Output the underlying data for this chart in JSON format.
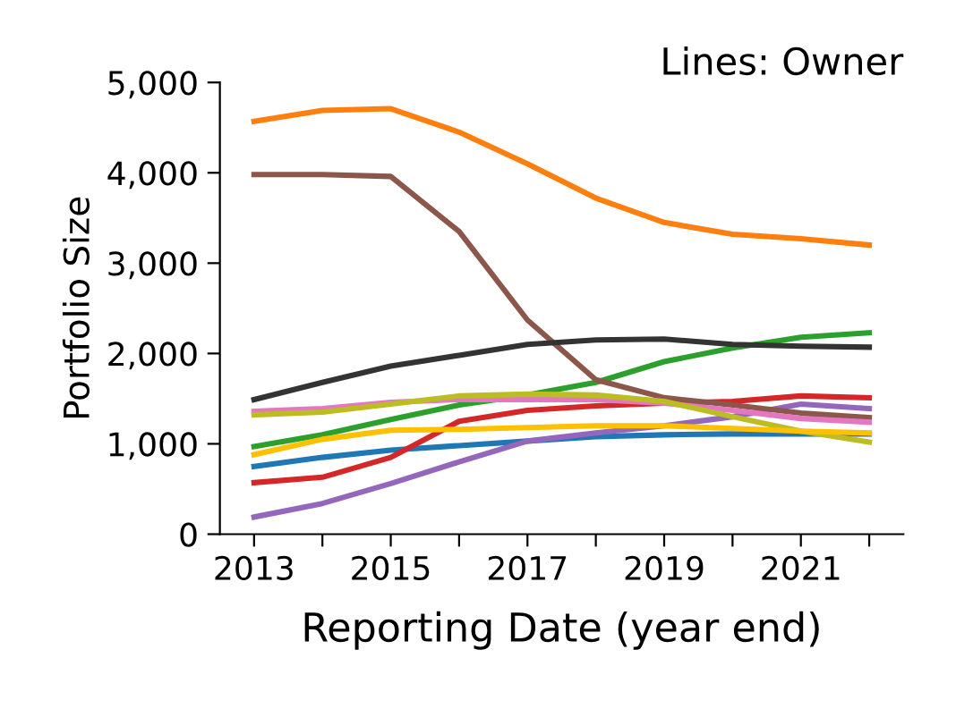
{
  "chart_data": {
    "type": "line",
    "title": "Lines: Owner",
    "xlabel": "Reporting Date (year end)",
    "ylabel": "Portfolio Size",
    "x": [
      2013,
      2014,
      2015,
      2016,
      2017,
      2018,
      2019,
      2020,
      2021,
      2022
    ],
    "xlim": [
      2012.5,
      2022.5
    ],
    "xticks": [
      2013,
      {
        "value": 2014,
        "label": null
      },
      2015,
      {
        "value": 2016,
        "label": null
      },
      2017,
      {
        "value": 2018,
        "label": null
      },
      2019,
      {
        "value": 2020,
        "label": null
      },
      2021,
      {
        "value": 2022,
        "label": null
      }
    ],
    "ylim": [
      0,
      5000
    ],
    "yticks": [
      {
        "value": 0,
        "label": "0"
      },
      {
        "value": 1000,
        "label": "1,000"
      },
      {
        "value": 2000,
        "label": "2,000"
      },
      {
        "value": 3000,
        "label": "3,000"
      },
      {
        "value": 4000,
        "label": "4,000"
      },
      {
        "value": 5000,
        "label": "5,000"
      }
    ],
    "grid": false,
    "legend": false,
    "marker": "none",
    "line_style": "solid",
    "series": [
      {
        "color": "#1f77b4",
        "values": [
          750,
          850,
          930,
          980,
          1030,
          1080,
          1100,
          1110,
          1110,
          1110
        ]
      },
      {
        "color": "#ff7f0e",
        "values": [
          4570,
          4690,
          4710,
          4450,
          4100,
          3720,
          3450,
          3320,
          3270,
          3200
        ]
      },
      {
        "color": "#2ca02c",
        "values": [
          970,
          1100,
          1270,
          1430,
          1540,
          1680,
          1910,
          2060,
          2180,
          2230
        ]
      },
      {
        "color": "#d62728",
        "values": [
          570,
          630,
          850,
          1250,
          1370,
          1420,
          1450,
          1470,
          1530,
          1510
        ]
      },
      {
        "color": "#9467bd",
        "values": [
          190,
          340,
          560,
          800,
          1030,
          1120,
          1200,
          1300,
          1440,
          1390
        ]
      },
      {
        "color": "#8c564b",
        "values": [
          3980,
          3980,
          3960,
          3350,
          2370,
          1710,
          1510,
          1430,
          1340,
          1290
        ]
      },
      {
        "color": "#e377c2",
        "values": [
          1360,
          1390,
          1460,
          1490,
          1490,
          1490,
          1450,
          1370,
          1280,
          1240
        ]
      },
      {
        "color": "#333333",
        "values": [
          1490,
          1680,
          1860,
          1980,
          2100,
          2150,
          2160,
          2100,
          2080,
          2070
        ]
      },
      {
        "color": "#bcbd22",
        "values": [
          1320,
          1350,
          1440,
          1530,
          1550,
          1540,
          1470,
          1300,
          1140,
          1020
        ]
      },
      {
        "color": "#ffc000",
        "values": [
          880,
          1050,
          1150,
          1160,
          1180,
          1200,
          1200,
          1170,
          1140,
          1120
        ]
      }
    ]
  }
}
